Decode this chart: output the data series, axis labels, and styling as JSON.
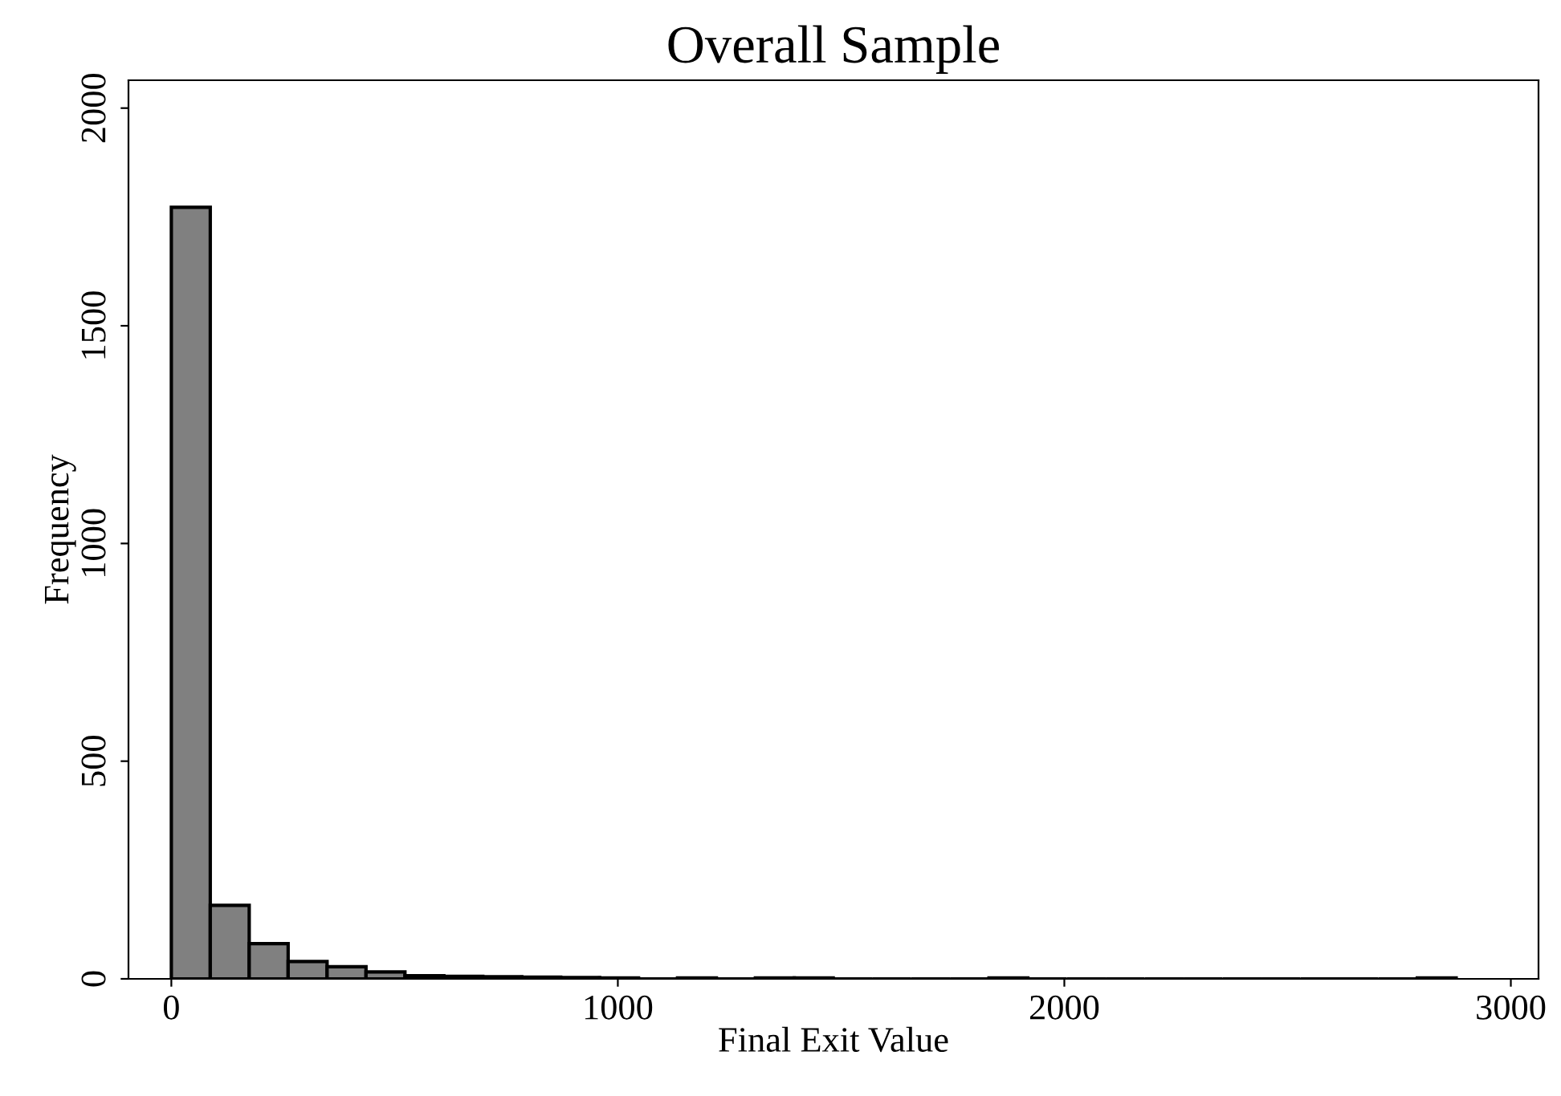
{
  "chart_data": {
    "type": "histogram",
    "title": "Overall Sample",
    "xlabel": "Final Exit Value",
    "ylabel": "Frequency",
    "bins": [
      0,
      87.2,
      174.4,
      261.6,
      348.8,
      436,
      523.2,
      610.4,
      697.6,
      784.8,
      872,
      959.2,
      1046.4,
      1133.6,
      1220.8,
      1308,
      1395.2,
      1482.4,
      1569.6,
      1656.8,
      1744,
      1831.2,
      1918.4,
      2005.6,
      2092.8,
      2180,
      2267.2,
      2354.4,
      2441.6,
      2528.8,
      2616,
      2703.2,
      2790.4,
      2877.6
    ],
    "values": [
      1772,
      169,
      81,
      40,
      28,
      16,
      7,
      6,
      5,
      4,
      3,
      2,
      0,
      2,
      0,
      2,
      2,
      0,
      0,
      0,
      0,
      2,
      0,
      0,
      0,
      0,
      0,
      0,
      0,
      0,
      0,
      0,
      2
    ],
    "color": "#808080",
    "xlim": [
      -96,
      3062
    ],
    "ylim": [
      0,
      2064
    ],
    "xticks": [
      0,
      1000,
      2000,
      3000
    ],
    "yticks": [
      0,
      500,
      1000,
      1500,
      2000
    ],
    "grid": false
  }
}
